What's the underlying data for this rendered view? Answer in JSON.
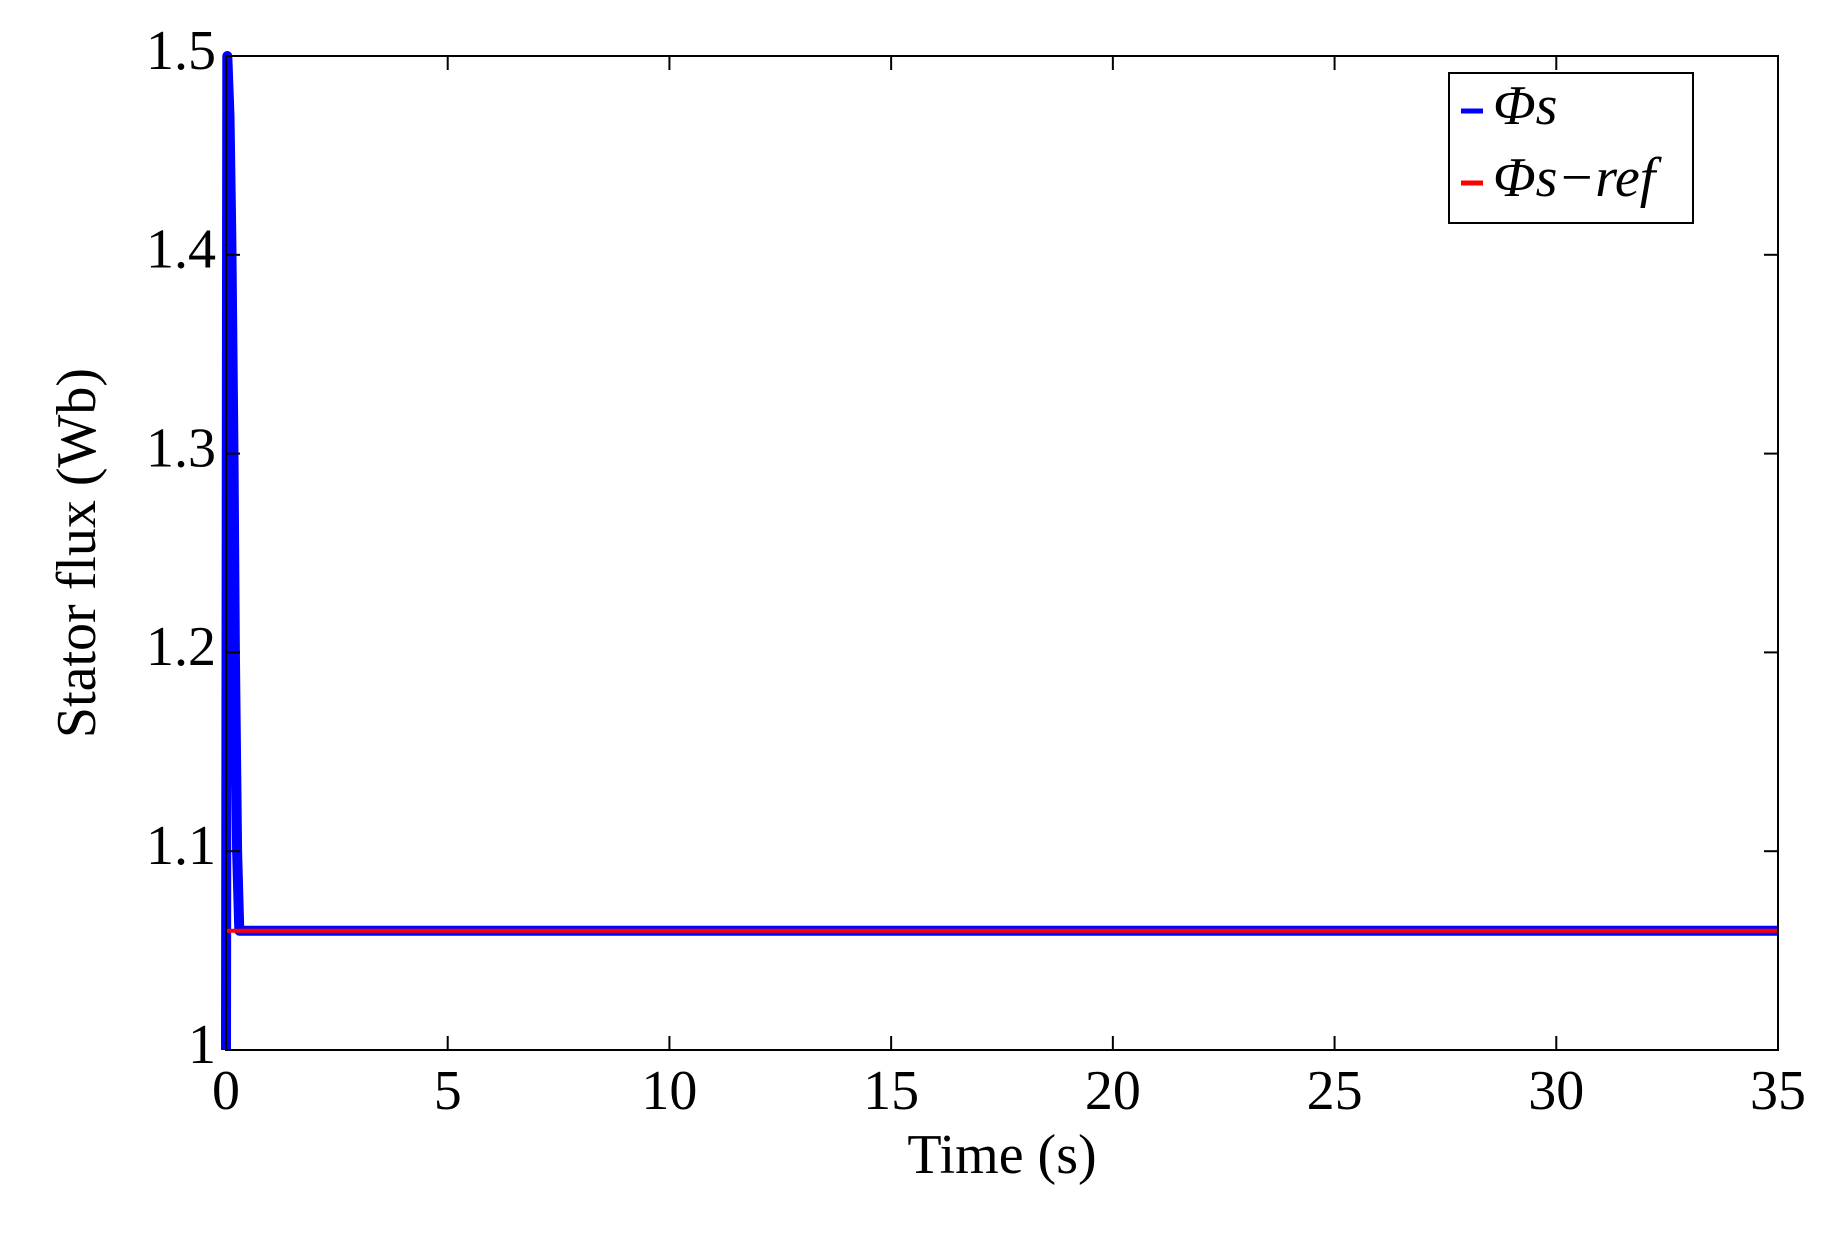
{
  "chart_data": {
    "type": "line",
    "x_label": "Time (s)",
    "y_label": "Stator flux (Wb)",
    "series": [
      {
        "name": "Φs",
        "color": "#0000ff",
        "x": [
          0,
          0.03,
          0.08,
          0.12,
          0.17,
          0.2,
          0.25,
          0.3,
          0.4,
          35
        ],
        "values": [
          1.0,
          1.5,
          1.47,
          1.41,
          1.3,
          1.2,
          1.1,
          1.06,
          1.06,
          1.06
        ]
      },
      {
        "name": "Φs−ref",
        "color": "#ff0000",
        "x": [
          0,
          35
        ],
        "values": [
          1.06,
          1.06
        ]
      }
    ],
    "xlim": [
      0,
      35
    ],
    "xticks": [
      0,
      5,
      10,
      15,
      20,
      25,
      30,
      35
    ],
    "ylim": [
      1,
      1.5
    ],
    "yticks": [
      1,
      1.1,
      1.2,
      1.3,
      1.4,
      1.5
    ],
    "grid": false,
    "legend": "upper right"
  }
}
